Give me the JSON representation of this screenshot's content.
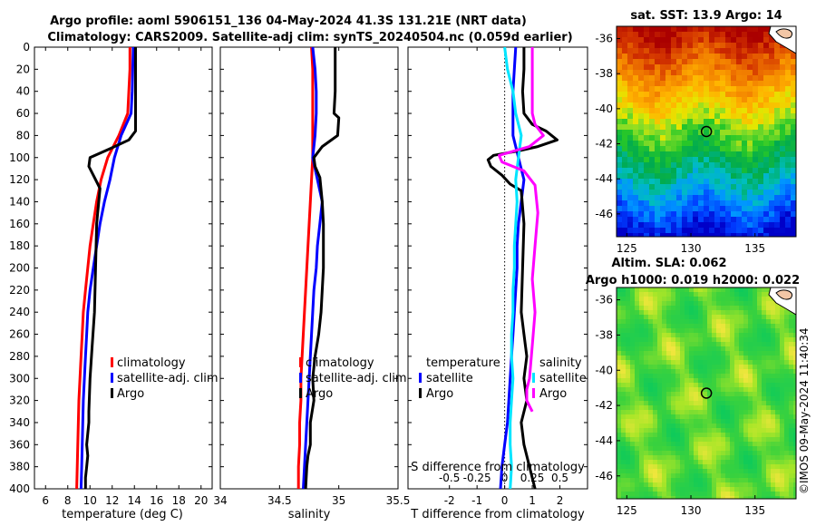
{
  "title": {
    "line1": "Argo profile: aoml 5906151_136 04-May-2024 41.3S 131.21E (NRT data)",
    "line2": "Climatology: CARS2009. Satellite-adj clim: synTS_20240504.nc (0.059d earlier)"
  },
  "depth_ticks": [
    0,
    20,
    40,
    60,
    80,
    100,
    120,
    140,
    160,
    180,
    200,
    220,
    240,
    260,
    280,
    300,
    320,
    340,
    360,
    380,
    400
  ],
  "colors": {
    "climatology": "#ff0000",
    "satellite": "#0000ff",
    "argo": "#000000",
    "sat_salinity": "#00e5ff",
    "argo_salinity": "#ff00ff"
  },
  "chart_data": [
    {
      "type": "line",
      "name": "temperature",
      "xlabel": "temperature (deg C)",
      "xlim": [
        5,
        21
      ],
      "xticks": [
        6,
        8,
        10,
        12,
        14,
        16,
        18,
        20
      ],
      "ylim": [
        0,
        400
      ],
      "legend": [
        "climatology",
        "satellite-adj. clim",
        "Argo"
      ],
      "series": [
        {
          "name": "climatology",
          "color": "#ff0000",
          "x": [
            13.6,
            13.6,
            13.5,
            13.4,
            12.6,
            11.6,
            11.0,
            10.6,
            10.3,
            10.0,
            9.8,
            9.6,
            9.4,
            9.3,
            9.2,
            9.1,
            9.0,
            8.95,
            8.9,
            8.85,
            8.8
          ],
          "y": [
            0,
            20,
            40,
            60,
            80,
            100,
            120,
            140,
            160,
            180,
            200,
            220,
            240,
            260,
            280,
            300,
            320,
            340,
            360,
            380,
            400
          ]
        },
        {
          "name": "satellite-adj. clim",
          "color": "#0000ff",
          "x": [
            13.9,
            13.85,
            13.8,
            13.7,
            12.8,
            12.2,
            11.8,
            11.3,
            10.9,
            10.6,
            10.3,
            10.0,
            9.8,
            9.7,
            9.6,
            9.5,
            9.4,
            9.35,
            9.3,
            9.25,
            9.2
          ],
          "y": [
            0,
            20,
            40,
            60,
            80,
            100,
            120,
            140,
            160,
            180,
            200,
            220,
            240,
            260,
            280,
            300,
            320,
            340,
            360,
            380,
            400
          ]
        },
        {
          "name": "Argo",
          "color": "#000000",
          "x": [
            14.1,
            14.1,
            14.1,
            14.1,
            14.1,
            13.5,
            11.8,
            10.0,
            9.9,
            10.4,
            10.9,
            10.6,
            10.5,
            10.4,
            10.2,
            10.0,
            9.9,
            9.9,
            9.7,
            9.8,
            9.7,
            9.6,
            9.6
          ],
          "y": [
            0,
            20,
            40,
            60,
            76,
            84,
            92,
            100,
            108,
            118,
            128,
            160,
            200,
            240,
            270,
            300,
            330,
            340,
            360,
            370,
            380,
            390,
            400
          ]
        }
      ]
    },
    {
      "type": "line",
      "name": "salinity",
      "xlabel": "salinity",
      "xlim": [
        34,
        35.5
      ],
      "xticks": [
        34,
        34.5,
        35,
        35.5
      ],
      "ylim": [
        0,
        400
      ],
      "legend": [
        "climatology",
        "satellite-adj. clim",
        "Argo"
      ],
      "series": [
        {
          "name": "climatology",
          "color": "#ff0000",
          "x": [
            34.77,
            34.78,
            34.78,
            34.78,
            34.78,
            34.78,
            34.77,
            34.76,
            34.75,
            34.74,
            34.73,
            34.72,
            34.71,
            34.7,
            34.69,
            34.68,
            34.68,
            34.67,
            34.67,
            34.66,
            34.66
          ],
          "y": [
            0,
            20,
            40,
            60,
            80,
            100,
            120,
            140,
            160,
            180,
            200,
            220,
            240,
            260,
            280,
            300,
            320,
            340,
            360,
            380,
            400
          ]
        },
        {
          "name": "satellite-adj. clim",
          "color": "#0000ff",
          "x": [
            34.78,
            34.8,
            34.81,
            34.81,
            34.8,
            34.78,
            34.82,
            34.86,
            34.84,
            34.82,
            34.81,
            34.79,
            34.78,
            34.77,
            34.76,
            34.75,
            34.74,
            34.73,
            34.72,
            34.71,
            34.7
          ],
          "y": [
            0,
            20,
            40,
            60,
            80,
            100,
            120,
            140,
            160,
            180,
            200,
            220,
            240,
            260,
            280,
            300,
            320,
            340,
            360,
            380,
            400
          ]
        },
        {
          "name": "Argo",
          "color": "#000000",
          "x": [
            34.97,
            34.97,
            34.97,
            34.96,
            35.0,
            34.99,
            34.86,
            34.79,
            34.8,
            34.84,
            34.86,
            34.87,
            34.87,
            34.87,
            34.86,
            34.85,
            34.83,
            34.8,
            34.78,
            34.79,
            34.76,
            34.76,
            34.74,
            34.73,
            34.72
          ],
          "y": [
            0,
            20,
            40,
            60,
            64,
            80,
            90,
            100,
            108,
            118,
            140,
            160,
            180,
            200,
            220,
            240,
            260,
            280,
            300,
            320,
            340,
            360,
            370,
            380,
            400
          ]
        }
      ]
    },
    {
      "type": "line",
      "name": "difference from climatology",
      "xlabel": "T difference from climatology",
      "xlabel_top": "S difference from climatology",
      "xlim": [
        -3.5,
        3
      ],
      "xticks": [
        -2,
        -1,
        0,
        1,
        2
      ],
      "xticks_top": [
        -0.5,
        -0.25,
        0,
        0.25,
        0.5
      ],
      "ylim": [
        0,
        400
      ],
      "legend_temperature": {
        "heading": "temperature",
        "entries": [
          "satellite",
          "Argo"
        ]
      },
      "legend_salinity": {
        "heading": "salinity",
        "entries": [
          "satellite",
          "Argo"
        ]
      },
      "series": [
        {
          "name": "temperature satellite",
          "color": "#0000ff",
          "x": [
            0.4,
            0.35,
            0.3,
            0.3,
            0.3,
            0.5,
            0.7,
            0.6,
            0.5,
            0.45,
            0.45,
            0.4,
            0.35,
            0.3,
            0.25,
            0.2,
            0.15,
            0.1,
            0.0,
            -0.1,
            -0.15
          ],
          "y": [
            0,
            20,
            40,
            60,
            80,
            100,
            120,
            140,
            160,
            180,
            200,
            220,
            240,
            260,
            280,
            300,
            320,
            340,
            360,
            380,
            400
          ]
        },
        {
          "name": "temperature Argo",
          "color": "#000000",
          "x": [
            0.7,
            0.7,
            0.65,
            0.7,
            1.0,
            1.5,
            1.9,
            1.2,
            0.5,
            -0.4,
            -0.6,
            -0.5,
            -0.1,
            0.2,
            0.6,
            0.7,
            0.65,
            0.6,
            0.7,
            0.8,
            0.7,
            0.8,
            0.6,
            0.7,
            0.9,
            1.1
          ],
          "y": [
            0,
            20,
            40,
            60,
            70,
            76,
            84,
            90,
            94,
            98,
            102,
            108,
            116,
            124,
            130,
            160,
            200,
            240,
            260,
            280,
            300,
            320,
            340,
            360,
            380,
            400
          ]
        },
        {
          "name": "salinity satellite",
          "color": "#00e5ff",
          "x": [
            0.0,
            0.1,
            0.3,
            0.4,
            0.6,
            0.5,
            0.4,
            0.45,
            0.4,
            0.35,
            0.35,
            0.3,
            0.3,
            0.25,
            0.25,
            0.3,
            0.25,
            0.2,
            0.2,
            0.25,
            0.2
          ],
          "y": [
            0,
            20,
            40,
            60,
            80,
            100,
            120,
            140,
            160,
            180,
            200,
            220,
            240,
            260,
            280,
            300,
            320,
            340,
            360,
            380,
            400
          ]
        },
        {
          "name": "salinity Argo",
          "color": "#ff00ff",
          "x": [
            1.0,
            1.0,
            1.0,
            1.0,
            1.1,
            1.4,
            0.9,
            -0.2,
            -0.1,
            0.7,
            1.1,
            1.2,
            1.1,
            1.0,
            1.1,
            1.0,
            0.9,
            0.8,
            0.8,
            0.9,
            1.0
          ],
          "y": [
            0,
            20,
            40,
            60,
            70,
            80,
            90,
            98,
            104,
            112,
            125,
            150,
            180,
            210,
            240,
            270,
            300,
            310,
            320,
            325,
            330
          ]
        }
      ]
    },
    {
      "type": "heatmap",
      "name": "satellite SST",
      "title": "sat. SST: 13.9 Argo: 14",
      "xticks": [
        125,
        130,
        135
      ],
      "yticks": [
        -36,
        -38,
        -40,
        -42,
        -44,
        -46
      ],
      "xlim": [
        124.2,
        138.2
      ],
      "ylim": [
        -47.3,
        -35.3
      ],
      "argo_position": [
        131.21,
        -41.3
      ]
    },
    {
      "type": "heatmap",
      "name": "altimetry SLA",
      "title_line1": "Altim. SLA: 0.062",
      "title_line2": "Argo h1000: 0.019 h2000: 0.022",
      "xticks": [
        125,
        130,
        135
      ],
      "yticks": [
        -36,
        -38,
        -40,
        -42,
        -44,
        -46
      ],
      "xlim": [
        124.2,
        138.2
      ],
      "ylim": [
        -47.3,
        -35.3
      ],
      "argo_position": [
        131.21,
        -41.3
      ]
    }
  ],
  "watermark": "©IMOS 09-May-2024 11:40:34"
}
